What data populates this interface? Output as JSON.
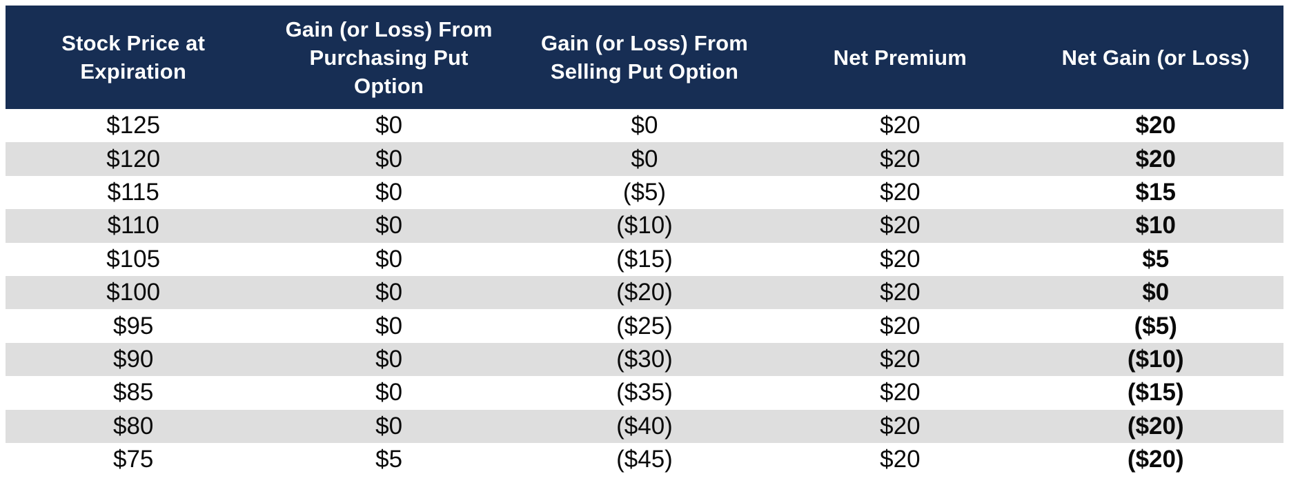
{
  "chart_data": {
    "type": "table",
    "title": "",
    "columns": [
      "Stock Price at Expiration",
      "Gain (or Loss) From Purchasing Put Option",
      "Gain (or Loss) From Selling Put Option",
      "Net Premium",
      "Net Gain (or Loss)"
    ],
    "rows": [
      [
        "$125",
        "$0",
        "$0",
        "$20",
        "$20"
      ],
      [
        "$120",
        "$0",
        "$0",
        "$20",
        "$20"
      ],
      [
        "$115",
        "$0",
        "($5)",
        "$20",
        "$15"
      ],
      [
        "$110",
        "$0",
        "($10)",
        "$20",
        "$10"
      ],
      [
        "$105",
        "$0",
        "($15)",
        "$20",
        "$5"
      ],
      [
        "$100",
        "$0",
        "($20)",
        "$20",
        "$0"
      ],
      [
        "$95",
        "$0",
        "($25)",
        "$20",
        "($5)"
      ],
      [
        "$90",
        "$0",
        "($30)",
        "$20",
        "($10)"
      ],
      [
        "$85",
        "$0",
        "($35)",
        "$20",
        "($15)"
      ],
      [
        "$80",
        "$0",
        "($40)",
        "$20",
        "($20)"
      ],
      [
        "$75",
        "$5",
        "($45)",
        "$20",
        "($20)"
      ]
    ]
  },
  "table": {
    "header": {
      "col1": "Stock Price at\nExpiration",
      "col2": "Gain (or Loss) From\nPurchasing Put\nOption",
      "col3": "Gain (or Loss) From\nSelling Put Option",
      "col4": "Net Premium",
      "col5": "Net Gain (or Loss)"
    },
    "rows": [
      [
        "$125",
        "$0",
        "$0",
        "$20",
        "$20"
      ],
      [
        "$120",
        "$0",
        "$0",
        "$20",
        "$20"
      ],
      [
        "$115",
        "$0",
        "($5)",
        "$20",
        "$15"
      ],
      [
        "$110",
        "$0",
        "($10)",
        "$20",
        "$10"
      ],
      [
        "$105",
        "$0",
        "($15)",
        "$20",
        "$5"
      ],
      [
        "$100",
        "$0",
        "($20)",
        "$20",
        "$0"
      ],
      [
        "$95",
        "$0",
        "($25)",
        "$20",
        "($5)"
      ],
      [
        "$90",
        "$0",
        "($30)",
        "$20",
        "($10)"
      ],
      [
        "$85",
        "$0",
        "($35)",
        "$20",
        "($15)"
      ],
      [
        "$80",
        "$0",
        "($40)",
        "$20",
        "($20)"
      ],
      [
        "$75",
        "$5",
        "($45)",
        "$20",
        "($20)"
      ]
    ]
  },
  "colors": {
    "header_bg": "#172e54",
    "header_text": "#ffffff",
    "row_bg": "#ffffff",
    "row_alt_bg": "#dedede",
    "body_text": "#0a0a0a"
  }
}
